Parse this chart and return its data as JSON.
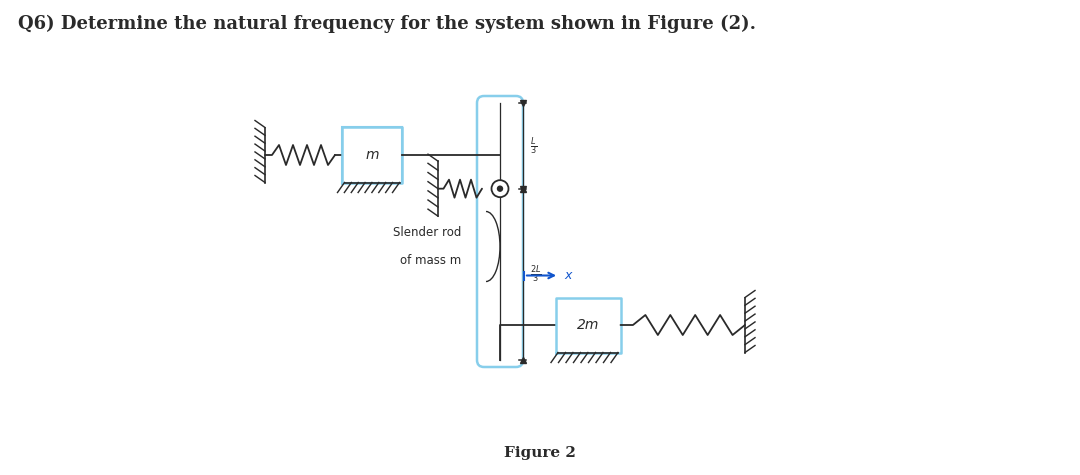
{
  "title": "Q6) Determine the natural frequency for the system shown in Figure (2).",
  "figure_label": "Figure 2",
  "title_fontsize": 13,
  "bg_color": "#ffffff",
  "fig_width": 10.8,
  "fig_height": 4.75,
  "mass_m_label": "m",
  "mass_2m_label": "2m",
  "slender_rod_label1": "Slender rod",
  "slender_rod_label2": "of mass m",
  "x_arrow_label": "x",
  "light_blue": "#87ceeb",
  "dark_color": "#2a2a2a",
  "spring_color": "#2a2a2a",
  "ground_color": "#2a2a2a",
  "arrow_color": "#1155cc",
  "dim_color": "#2a2a2a"
}
